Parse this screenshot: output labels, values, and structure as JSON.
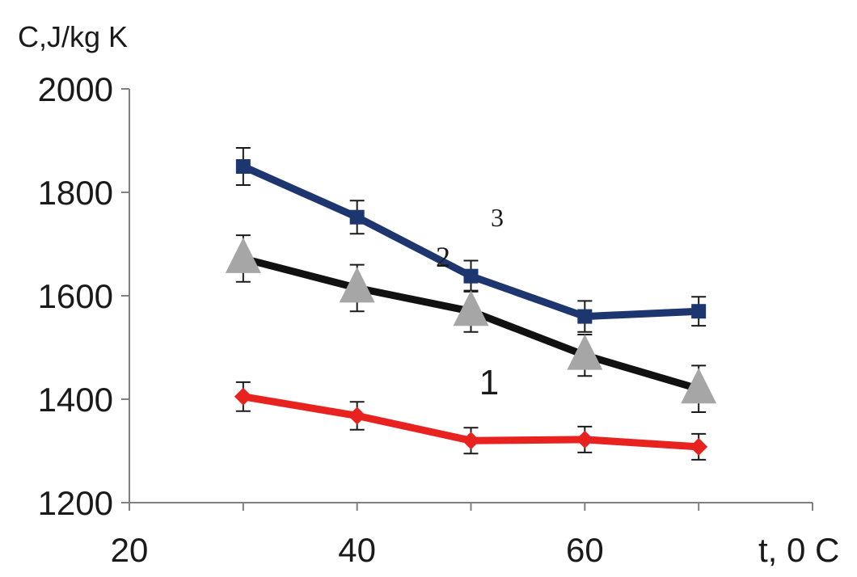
{
  "chart_data": {
    "type": "line",
    "ylabel": "C,J/kg K",
    "xlabel": "t, 0 C",
    "xlim": [
      20,
      80
    ],
    "ylim": [
      1200,
      2000
    ],
    "xticks": [
      "20",
      "40",
      "60"
    ],
    "yticks": [
      "1200",
      "1400",
      "1600",
      "1800",
      "2000"
    ],
    "grid": false,
    "x": [
      30,
      40,
      50,
      60,
      70
    ],
    "series": [
      {
        "name": "1",
        "color": "#e8231f",
        "marker": "diamond",
        "values": [
          1405,
          1368,
          1320,
          1322,
          1308
        ],
        "error": [
          28,
          27,
          25,
          25,
          25
        ]
      },
      {
        "name": "2",
        "color": "#111111",
        "marker_color": "#a6a6a6",
        "marker": "triangle",
        "values": [
          1672,
          1615,
          1570,
          1485,
          1420
        ],
        "error": [
          45,
          45,
          40,
          40,
          45
        ]
      },
      {
        "name": "3",
        "color": "#1d3670",
        "marker": "square",
        "values": [
          1850,
          1752,
          1638,
          1560,
          1570
        ],
        "error": [
          36,
          32,
          30,
          30,
          28
        ]
      }
    ]
  }
}
